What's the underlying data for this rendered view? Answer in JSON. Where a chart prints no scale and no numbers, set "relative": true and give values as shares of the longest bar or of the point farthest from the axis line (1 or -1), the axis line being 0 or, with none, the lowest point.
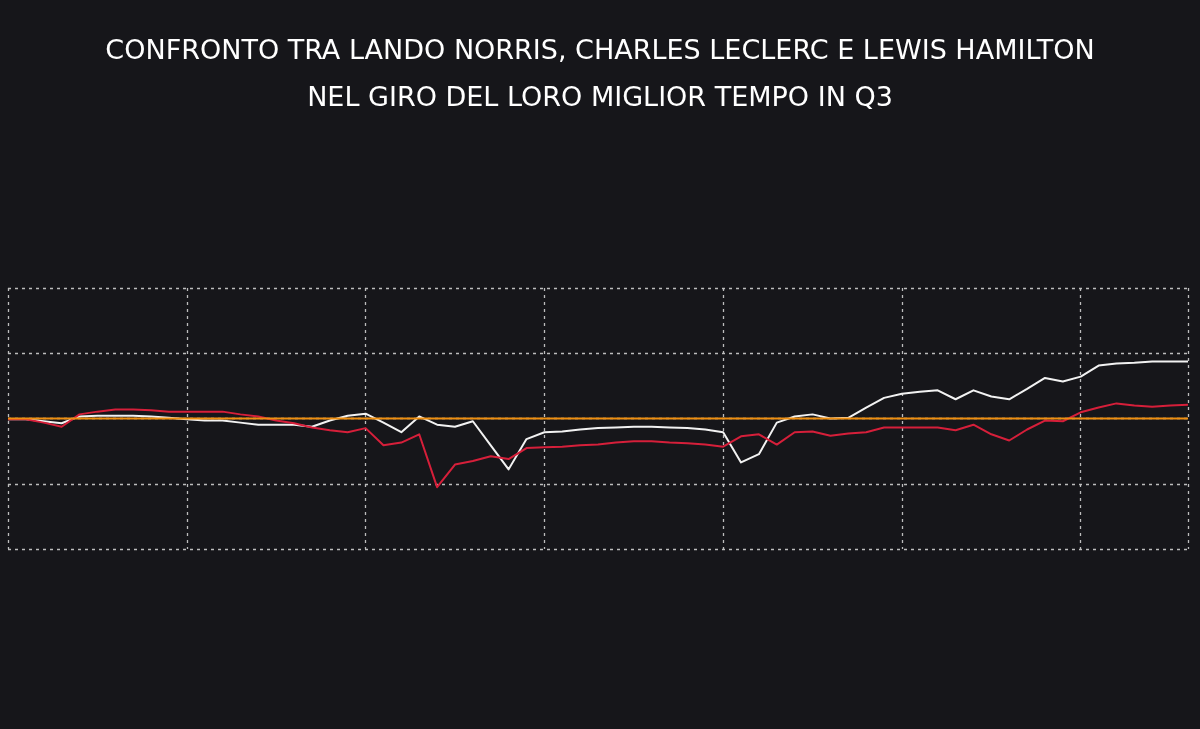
{
  "chart_data": {
    "type": "line",
    "title": "CONFRONTO TRA LANDO NORRIS, CHARLES LECLERC E LEWIS HAMILTON\nNEL GIRO DEL LORO MIGLIOR TEMPO IN Q3",
    "relative": true,
    "grid": true,
    "marker": "none",
    "line_style": "solid",
    "categories": [
      null,
      null,
      null,
      null,
      null,
      null,
      null,
      null,
      null,
      null,
      null,
      null,
      null,
      null,
      null,
      null,
      null,
      null,
      null,
      null,
      null,
      null,
      null,
      null,
      null,
      null,
      null,
      null,
      null,
      null,
      null,
      null,
      null,
      null,
      null,
      null,
      null,
      null,
      null,
      null,
      null,
      null,
      null,
      null,
      null,
      null,
      null,
      null,
      null,
      null,
      null,
      null,
      null,
      null,
      null,
      null,
      null,
      null,
      null,
      null,
      null,
      null,
      null,
      null,
      null,
      null,
      null
    ],
    "series": [
      {
        "color": "#ef8f10",
        "values": [
          0,
          0,
          0,
          0,
          0,
          0,
          0,
          0,
          0,
          0,
          0,
          0,
          0,
          0,
          0,
          0,
          0,
          0,
          0,
          0,
          0,
          0,
          0,
          0,
          0,
          0,
          0,
          0,
          0,
          0,
          0,
          0,
          0,
          0,
          0,
          0,
          0,
          0,
          0,
          0,
          0,
          0,
          0,
          0,
          0,
          0,
          0,
          0,
          0,
          0,
          0,
          0,
          0,
          0,
          0,
          0,
          0,
          0,
          0,
          0,
          0,
          0,
          0,
          0,
          0,
          0,
          0
        ]
      },
      {
        "color": "#d61f3a",
        "values": [
          -0.01,
          -0.01,
          -0.06,
          -0.12,
          0.06,
          0.1,
          0.13,
          0.13,
          0.12,
          0.1,
          0.1,
          0.1,
          0.1,
          0.06,
          0.03,
          -0.03,
          -0.07,
          -0.13,
          -0.17,
          -0.2,
          -0.14,
          -0.39,
          -0.35,
          -0.23,
          -1,
          -0.67,
          -0.62,
          -0.55,
          -0.59,
          -0.43,
          -0.42,
          -0.41,
          -0.39,
          -0.38,
          -0.35,
          -0.33,
          -0.33,
          -0.35,
          -0.36,
          -0.38,
          -0.41,
          -0.26,
          -0.23,
          -0.38,
          -0.2,
          -0.19,
          -0.25,
          -0.22,
          -0.2,
          -0.13,
          -0.13,
          -0.13,
          -0.13,
          -0.17,
          -0.09,
          -0.23,
          -0.32,
          -0.16,
          -0.03,
          -0.04,
          0.09,
          0.16,
          0.22,
          0.19,
          0.17,
          0.19,
          0.2
        ]
      },
      {
        "color": "#f2f2f2",
        "values": [
          -0.01,
          -0.01,
          -0.04,
          -0.07,
          0.03,
          0.04,
          0.04,
          0.04,
          0.03,
          0.01,
          -0.01,
          -0.03,
          -0.03,
          -0.06,
          -0.09,
          -0.09,
          -0.09,
          -0.12,
          -0.03,
          0.04,
          0.07,
          -0.06,
          -0.2,
          0.03,
          -0.09,
          -0.12,
          -0.04,
          -0.39,
          -0.74,
          -0.3,
          -0.2,
          -0.19,
          -0.16,
          -0.14,
          -0.13,
          -0.12,
          -0.12,
          -0.13,
          -0.14,
          -0.16,
          -0.2,
          -0.64,
          -0.52,
          -0.06,
          0.03,
          0.06,
          0,
          0.01,
          0.16,
          0.3,
          0.36,
          0.39,
          0.41,
          0.28,
          0.41,
          0.32,
          0.28,
          0.43,
          0.59,
          0.54,
          0.61,
          0.77,
          0.8,
          0.81,
          0.83,
          0.83,
          0.83
        ]
      }
    ]
  }
}
